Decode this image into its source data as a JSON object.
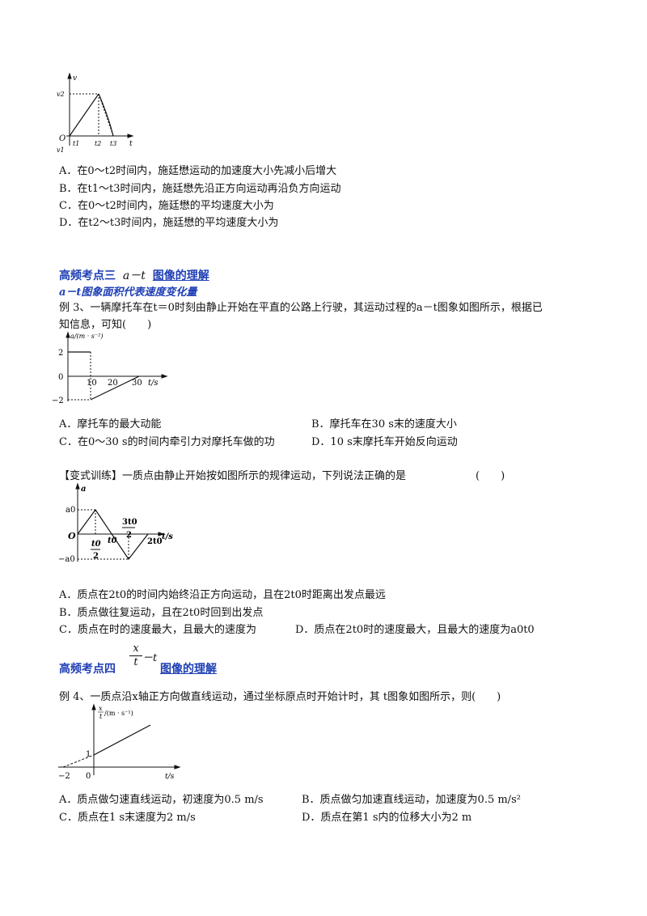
{
  "fig1": {
    "y_axis": "v",
    "v2": "v2",
    "v1": "v1",
    "origin": "O",
    "ticks": [
      "t1",
      "t2",
      "t3"
    ],
    "x_axis": "t"
  },
  "q_prev_options": [
    "A．在0～t2时间内，施廷懋运动的加速度大小先减小后增大",
    "B．在t1～t3时间内，施廷懋先沿正方向运动再沿负方向运动",
    "C．在0～t2时间内，施廷懋的平均速度大小为",
    "D．在t2～t3时间内，施廷懋的平均速度大小为"
  ],
  "section3": {
    "prefix": "高频考点三",
    "formula": "a－t",
    "title": "图像的理解",
    "subtitle": "a－t图象面积代表速度变化量"
  },
  "example3": {
    "line1": "例 3、一辆摩托车在t＝0时刻由静止开始在平直的公路上行驶，其运动过程的a－t图象如图所示，根据已",
    "line2": "知信息，可知(　　)",
    "chart": {
      "y_label": "a/(m · s⁻²)",
      "y_ticks": [
        "2",
        "0",
        "−2"
      ],
      "x_ticks": [
        "10",
        "20",
        "30"
      ],
      "x_label": "t/s"
    },
    "options": [
      "A．摩托车的最大动能",
      "B．摩托车在30 s末的速度大小",
      "C．在0～30 s的时间内牵引力对摩托车做的功",
      "D．10 s末摩托车开始反向运动"
    ]
  },
  "variant": {
    "question": "【变式训练】一质点由静止开始按如图所示的规律运动，下列说法正确的是",
    "paren": "(　　)",
    "chart": {
      "y_axis": "a",
      "a0": "a0",
      "neg_a0": "−a0",
      "origin": "O",
      "half_top": "t0",
      "half_bottom": "2",
      "t0": "t0",
      "three_half_top": "3t0",
      "three_half_bottom": "2",
      "two_t0": "2t0",
      "x_label": "t/s"
    },
    "options": [
      "A．质点在2t0的时间内始终沿正方向运动，且在2t0时距离出发点最远",
      "B．质点做往复运动，且在2t0时回到出发点",
      "C．质点在时的速度最大，且最大的速度为",
      "D．质点在2t0时的速度最大，且最大的速度为a0t0"
    ]
  },
  "section4": {
    "prefix": "高频考点四",
    "frac_top": "x",
    "frac_bottom": "t",
    "minus_t": "－t",
    "title": "图像的理解"
  },
  "example4": {
    "question": "例 4、一质点沿x轴正方向做直线运动，通过坐标原点时开始计时，其 t图象如图所示，则(　　)",
    "chart": {
      "y_frac_top": "x",
      "y_frac_bottom": "t",
      "y_unit": "/(m · s⁻¹)",
      "y_tick": "1",
      "x_ticks": [
        "−2",
        "0"
      ],
      "x_label": "t/s"
    },
    "options": [
      "A．质点做匀速直线运动，初速度为0.5 m/s",
      "B．质点做匀加速直线运动，加速度为0.5 m/s²",
      "C．质点在1 s末速度为2 m/s",
      "D．质点在第1 s内的位移大小为2 m"
    ]
  }
}
